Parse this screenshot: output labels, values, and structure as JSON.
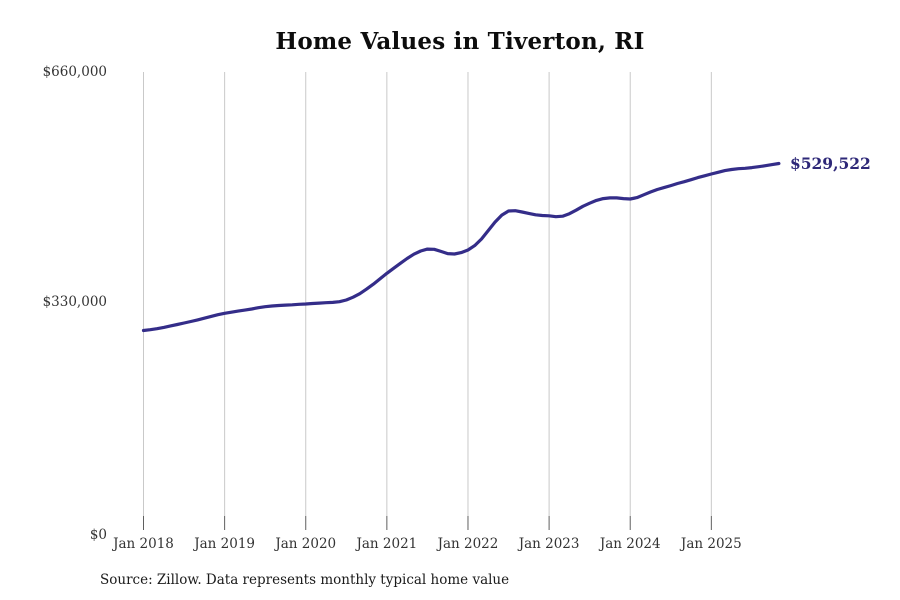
{
  "title": "Home Values in Tiverton, RI",
  "source_note": "Source: Zillow. Data represents monthly typical home value",
  "end_label": "$529,522",
  "colors": {
    "line": "#342d89",
    "end_label": "#2e2878",
    "gridline": "#c9c9c9",
    "tick": "#5f5f5f",
    "title_text": "#0d0d0d",
    "axis_text": "#333333"
  },
  "chart_data": {
    "type": "line",
    "title": "Home Values in Tiverton, RI",
    "series_name": "Monthly typical home value (Zillow)",
    "x_start": "2018-01",
    "x_end": "2025-11",
    "x_interval": "monthly",
    "x_tick_labels": [
      "Jan 2018",
      "Jan 2019",
      "Jan 2020",
      "Jan 2021",
      "Jan 2022",
      "Jan 2023",
      "Jan 2024",
      "Jan 2025"
    ],
    "y_tick_labels": [
      "$0",
      "$330,000",
      "$660,000"
    ],
    "y_ticks": [
      0,
      330000,
      660000
    ],
    "ylim": [
      0,
      660000
    ],
    "grid": "vertical-only",
    "legend": "none",
    "last_value": 529522,
    "last_value_label": "$529,522",
    "values": [
      291500,
      292600,
      294100,
      296000,
      298000,
      300100,
      302200,
      304300,
      306600,
      309100,
      311600,
      314000,
      316000,
      317600,
      319100,
      320600,
      322200,
      324000,
      325500,
      326500,
      327200,
      327700,
      328200,
      328800,
      329300,
      330000,
      330600,
      331100,
      331600,
      332600,
      335000,
      339000,
      344000,
      350500,
      357500,
      365300,
      373100,
      380200,
      387300,
      394200,
      400300,
      404800,
      407500,
      407200,
      404200,
      401200,
      400500,
      402600,
      406300,
      412500,
      422000,
      434000,
      446000,
      456000,
      461800,
      462300,
      460500,
      458500,
      456500,
      455500,
      455000,
      453700,
      454500,
      458000,
      463000,
      468500,
      473000,
      477000,
      479500,
      480500,
      480500,
      479600,
      478900,
      481000,
      485000,
      489000,
      492500,
      495200,
      498000,
      501000,
      503600,
      506500,
      509500,
      512000,
      514600,
      517000,
      519500,
      521000,
      522100,
      522700,
      523700,
      525000,
      526500,
      528000,
      529522
    ]
  }
}
